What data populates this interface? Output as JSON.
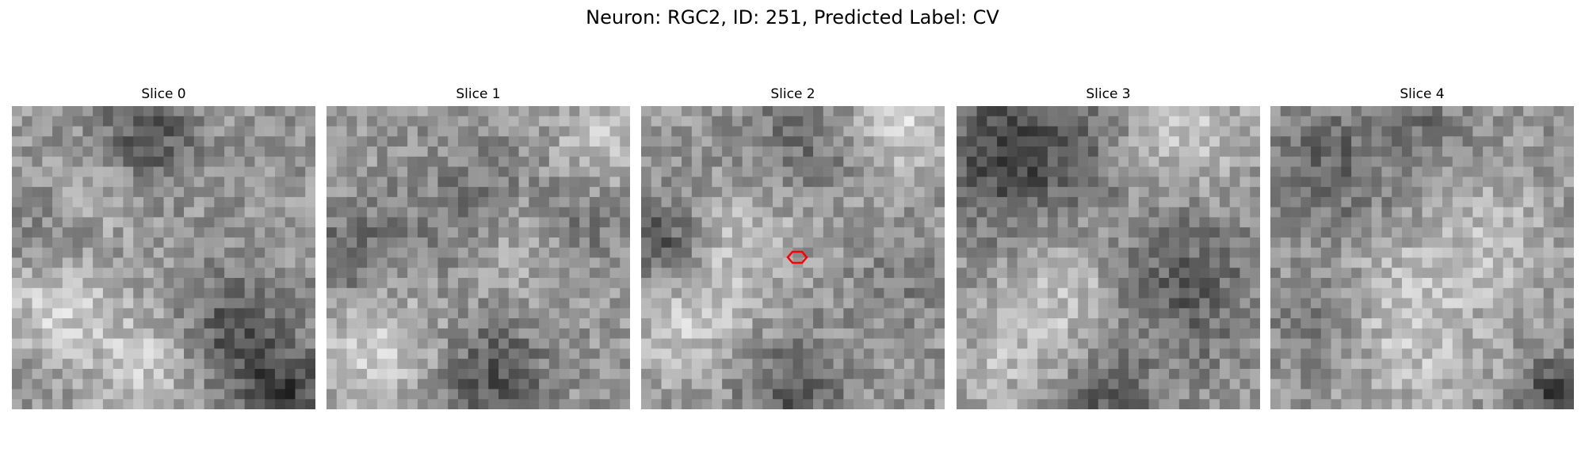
{
  "figure": {
    "title": "Neuron: RGC2, ID: 251, Predicted Label: CV",
    "colormap": "gray",
    "marker_color": "#ff0000"
  },
  "panels": [
    {
      "title": "Slice 0"
    },
    {
      "title": "Slice 1"
    },
    {
      "title": "Slice 2",
      "has_marker": true
    },
    {
      "title": "Slice 3"
    },
    {
      "title": "Slice 4"
    }
  ]
}
